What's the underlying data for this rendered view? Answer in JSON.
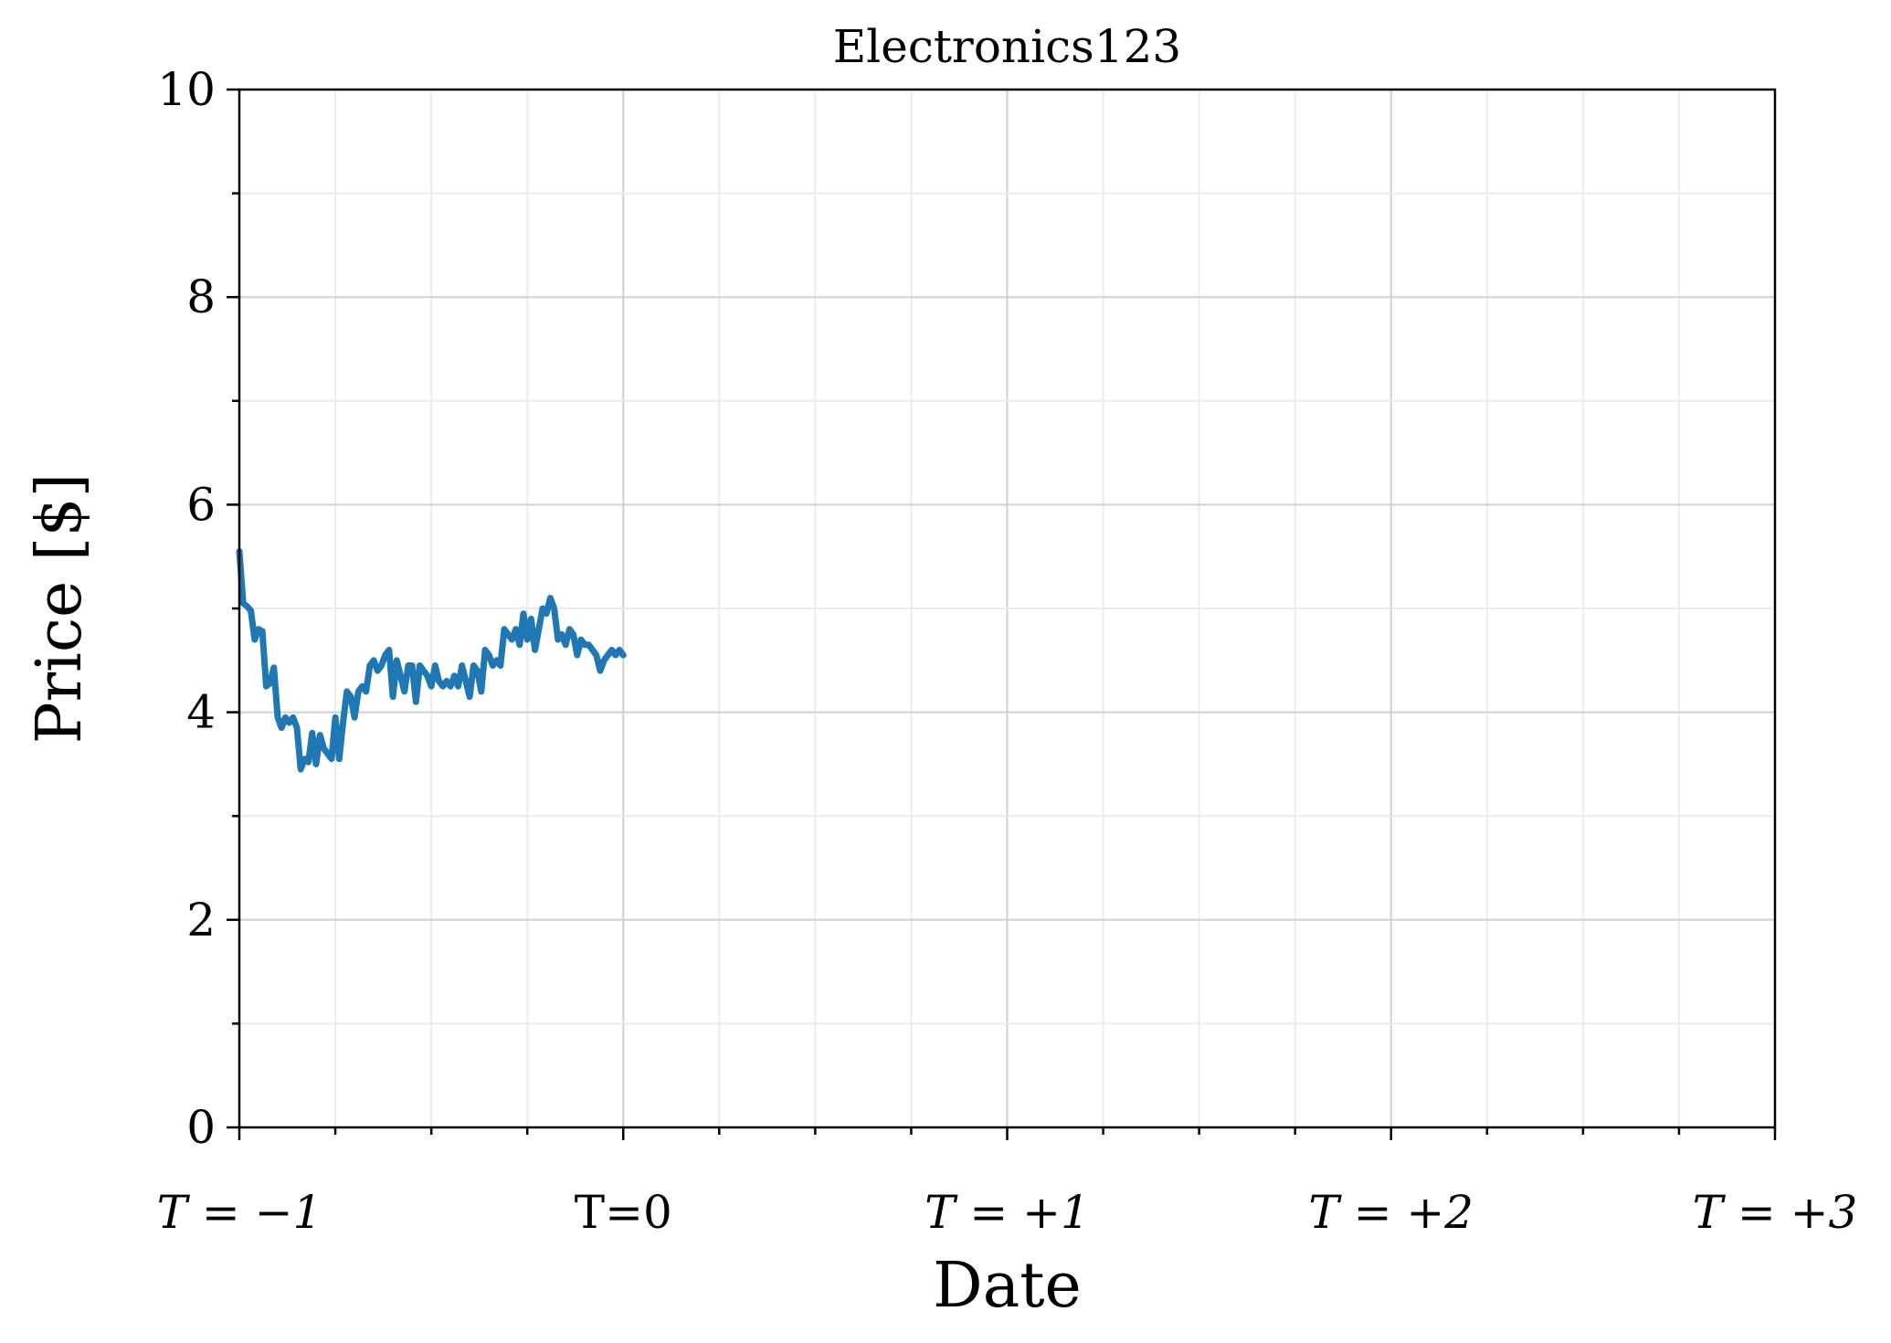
{
  "chart_data": {
    "type": "line",
    "title": "Electronics123",
    "xlabel": "Date",
    "ylabel": "Price [$]",
    "xlim": [
      -1,
      3
    ],
    "ylim": [
      0,
      10
    ],
    "x_ticks": [
      {
        "value": -1,
        "label": "T = −1",
        "math": true
      },
      {
        "value": 0,
        "label": "T=0",
        "math": false
      },
      {
        "value": 1,
        "label": "T = +1",
        "math": true
      },
      {
        "value": 2,
        "label": "T = +2",
        "math": true
      },
      {
        "value": 3,
        "label": "T = +3",
        "math": true
      }
    ],
    "x_minor_step": 0.25,
    "y_ticks": [
      0,
      2,
      4,
      6,
      8,
      10
    ],
    "y_minor_step": 1,
    "grid": true,
    "series": [
      {
        "color": "#1f77b4",
        "x": [
          -1.0,
          -0.99,
          -0.98,
          -0.97,
          -0.96,
          -0.95,
          -0.94,
          -0.93,
          -0.92,
          -0.91,
          -0.9,
          -0.89,
          -0.88,
          -0.87,
          -0.86,
          -0.85,
          -0.84,
          -0.83,
          -0.82,
          -0.81,
          -0.8,
          -0.79,
          -0.78,
          -0.77,
          -0.76,
          -0.75,
          -0.74,
          -0.73,
          -0.72,
          -0.71,
          -0.7,
          -0.69,
          -0.68,
          -0.67,
          -0.66,
          -0.65,
          -0.64,
          -0.63,
          -0.62,
          -0.61,
          -0.6,
          -0.59,
          -0.58,
          -0.57,
          -0.56,
          -0.55,
          -0.54,
          -0.53,
          -0.52,
          -0.51,
          -0.5,
          -0.49,
          -0.48,
          -0.47,
          -0.46,
          -0.45,
          -0.44,
          -0.43,
          -0.42,
          -0.41,
          -0.4,
          -0.39,
          -0.38,
          -0.37,
          -0.36,
          -0.35,
          -0.34,
          -0.33,
          -0.32,
          -0.31,
          -0.3,
          -0.29,
          -0.28,
          -0.27,
          -0.26,
          -0.25,
          -0.24,
          -0.23,
          -0.22,
          -0.21,
          -0.2,
          -0.19,
          -0.18,
          -0.17,
          -0.16,
          -0.15,
          -0.14,
          -0.13,
          -0.12,
          -0.11,
          -0.1,
          -0.09,
          -0.08,
          -0.07,
          -0.06,
          -0.05,
          -0.04,
          -0.03,
          -0.02,
          -0.01,
          0.0
        ],
        "y": [
          5.55,
          5.05,
          5.02,
          4.98,
          4.7,
          4.8,
          4.78,
          4.25,
          4.28,
          4.43,
          3.95,
          3.85,
          3.95,
          3.9,
          3.95,
          3.85,
          3.45,
          3.55,
          3.52,
          3.8,
          3.5,
          3.78,
          3.65,
          3.6,
          3.55,
          3.95,
          3.55,
          3.9,
          4.2,
          4.15,
          3.95,
          4.2,
          4.25,
          4.2,
          4.45,
          4.5,
          4.4,
          4.45,
          4.55,
          4.6,
          4.15,
          4.5,
          4.35,
          4.2,
          4.45,
          4.45,
          4.1,
          4.45,
          4.4,
          4.35,
          4.25,
          4.45,
          4.3,
          4.25,
          4.3,
          4.25,
          4.35,
          4.25,
          4.45,
          4.3,
          4.15,
          4.45,
          4.4,
          4.2,
          4.6,
          4.55,
          4.45,
          4.5,
          4.45,
          4.8,
          4.75,
          4.7,
          4.8,
          4.65,
          4.95,
          4.7,
          4.9,
          4.6,
          4.8,
          5.0,
          4.95,
          5.1,
          5.0,
          4.7,
          4.75,
          4.65,
          4.8,
          4.75,
          4.55,
          4.7,
          4.65,
          4.65,
          4.6,
          4.55,
          4.4,
          4.5,
          4.55,
          4.6,
          4.55,
          4.6,
          4.55
        ]
      }
    ]
  }
}
